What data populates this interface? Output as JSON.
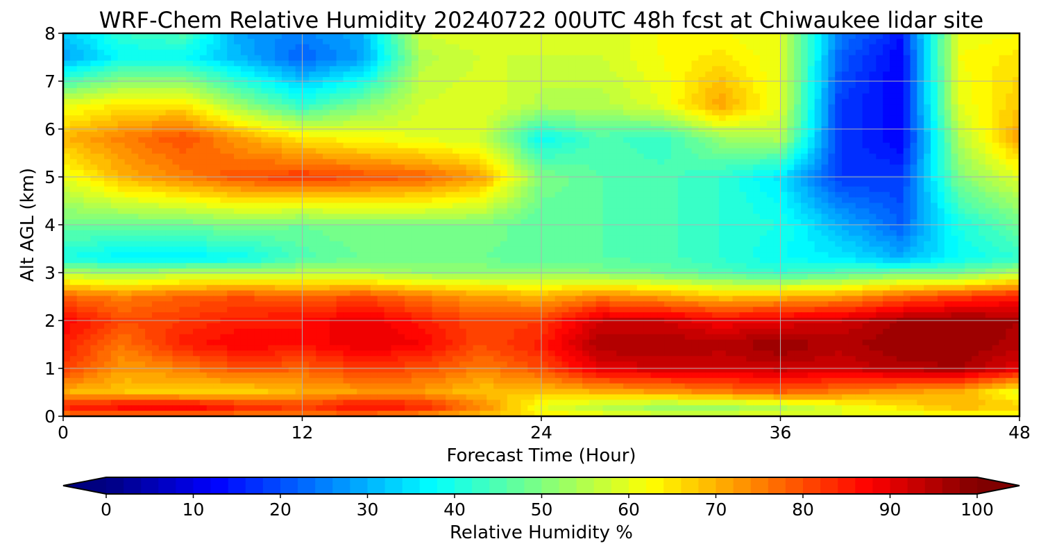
{
  "chart_data": {
    "type": "heatmap",
    "title": "WRF-Chem Relative Humidity 20240722 00UTC 48h fcst at Chiwaukee lidar site",
    "xlabel": "Forecast Time (Hour)",
    "ylabel": "Alt AGL (km)",
    "xlim": [
      0,
      48
    ],
    "ylim": [
      0,
      8
    ],
    "x_ticks": [
      "0",
      "12",
      "24",
      "36",
      "48"
    ],
    "y_ticks": [
      "0",
      "1",
      "2",
      "3",
      "4",
      "5",
      "6",
      "7",
      "8"
    ],
    "grid": true,
    "x": [
      0,
      3,
      6,
      9,
      12,
      15,
      18,
      21,
      24,
      27,
      30,
      33,
      36,
      39,
      42,
      45,
      48
    ],
    "y": [
      0,
      0.2,
      0.5,
      1,
      1.5,
      2,
      2.5,
      3,
      3.3,
      4,
      5,
      5.8,
      6.5,
      7.5,
      8
    ],
    "z": [
      [
        75,
        75,
        75,
        75,
        75,
        75,
        72,
        68,
        65,
        62,
        60,
        60,
        60,
        60,
        60,
        60,
        60
      ],
      [
        85,
        88,
        90,
        85,
        82,
        88,
        85,
        75,
        60,
        55,
        52,
        52,
        55,
        60,
        65,
        70,
        68
      ],
      [
        70,
        68,
        66,
        66,
        70,
        72,
        72,
        68,
        68,
        70,
        72,
        75,
        78,
        75,
        72,
        70,
        60
      ],
      [
        82,
        72,
        75,
        80,
        78,
        82,
        80,
        75,
        80,
        90,
        92,
        92,
        93,
        92,
        95,
        96,
        90
      ],
      [
        85,
        76,
        85,
        88,
        86,
        90,
        88,
        80,
        85,
        96,
        96,
        95,
        98,
        95,
        98,
        98,
        95
      ],
      [
        88,
        80,
        82,
        85,
        86,
        90,
        85,
        80,
        82,
        92,
        92,
        88,
        90,
        92,
        96,
        98,
        96
      ],
      [
        78,
        75,
        78,
        80,
        78,
        80,
        76,
        72,
        70,
        75,
        72,
        68,
        70,
        72,
        78,
        82,
        85
      ],
      [
        55,
        52,
        55,
        55,
        55,
        55,
        52,
        52,
        52,
        50,
        48,
        45,
        42,
        45,
        48,
        48,
        55
      ],
      [
        40,
        36,
        36,
        38,
        45,
        48,
        48,
        48,
        46,
        46,
        45,
        42,
        38,
        36,
        30,
        38,
        42
      ],
      [
        48,
        48,
        48,
        50,
        48,
        50,
        50,
        50,
        46,
        46,
        45,
        42,
        40,
        30,
        22,
        40,
        48
      ],
      [
        60,
        70,
        75,
        80,
        82,
        80,
        78,
        72,
        50,
        46,
        45,
        42,
        35,
        18,
        18,
        50,
        60
      ],
      [
        70,
        75,
        80,
        72,
        65,
        62,
        60,
        58,
        38,
        45,
        42,
        52,
        55,
        18,
        12,
        55,
        72
      ],
      [
        60,
        65,
        65,
        52,
        42,
        50,
        58,
        60,
        55,
        55,
        60,
        72,
        60,
        18,
        12,
        60,
        68
      ],
      [
        28,
        38,
        38,
        30,
        22,
        28,
        55,
        58,
        58,
        58,
        62,
        65,
        60,
        22,
        12,
        62,
        65
      ],
      [
        32,
        42,
        45,
        28,
        25,
        30,
        58,
        60,
        58,
        58,
        62,
        62,
        60,
        25,
        15,
        60,
        62
      ]
    ],
    "colorbar": {
      "label": "Relative Humidity %",
      "ticks": [
        "0",
        "10",
        "20",
        "30",
        "40",
        "50",
        "60",
        "70",
        "80",
        "90",
        "100"
      ],
      "range": [
        0,
        100
      ],
      "extend": "both",
      "colormap": "jet"
    }
  }
}
